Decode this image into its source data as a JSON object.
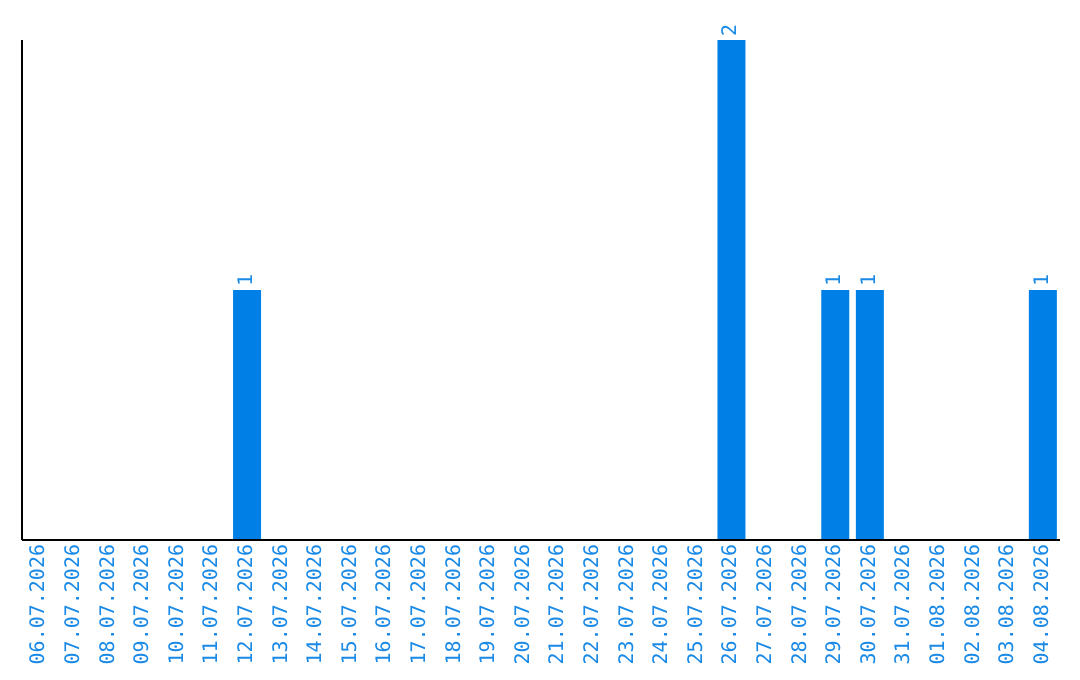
{
  "chart_data": {
    "type": "bar",
    "categories": [
      "06.07.2026",
      "07.07.2026",
      "08.07.2026",
      "09.07.2026",
      "10.07.2026",
      "11.07.2026",
      "12.07.2026",
      "13.07.2026",
      "14.07.2026",
      "15.07.2026",
      "16.07.2026",
      "17.07.2026",
      "18.07.2026",
      "19.07.2026",
      "20.07.2026",
      "21.07.2026",
      "22.07.2026",
      "23.07.2026",
      "24.07.2026",
      "25.07.2026",
      "26.07.2026",
      "27.07.2026",
      "28.07.2026",
      "29.07.2026",
      "30.07.2026",
      "31.07.2026",
      "01.08.2026",
      "02.08.2026",
      "03.08.2026",
      "04.08.2026"
    ],
    "values": [
      0,
      0,
      0,
      0,
      0,
      0,
      1,
      0,
      0,
      0,
      0,
      0,
      0,
      0,
      0,
      0,
      0,
      0,
      0,
      0,
      2,
      0,
      0,
      1,
      1,
      0,
      0,
      0,
      0,
      1
    ],
    "value_labels": [
      null,
      null,
      null,
      null,
      null,
      null,
      "1",
      null,
      null,
      null,
      null,
      null,
      null,
      null,
      null,
      null,
      null,
      null,
      null,
      null,
      "2",
      null,
      null,
      "1",
      "1",
      null,
      null,
      null,
      null,
      "1"
    ],
    "color": "#0080e6",
    "grid": false
  }
}
